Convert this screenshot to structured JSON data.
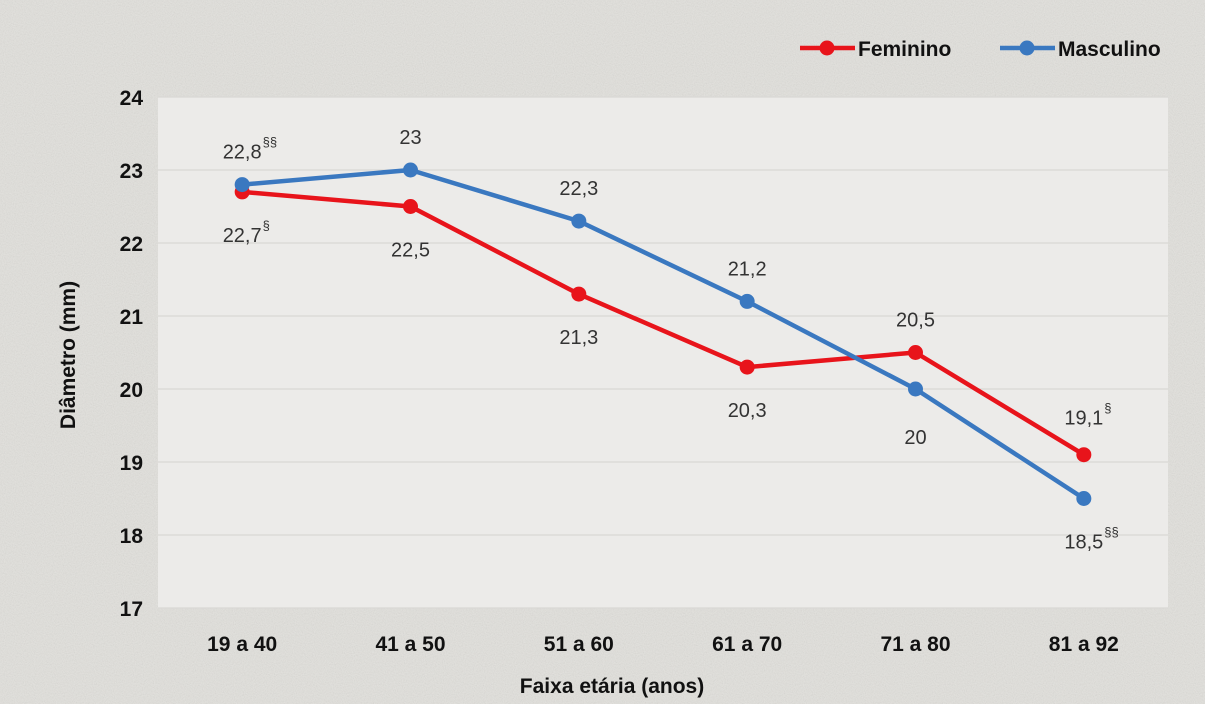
{
  "chart_data": {
    "type": "line",
    "title": "",
    "xlabel": "Faixa etária (anos)",
    "ylabel": "Diâmetro (mm)",
    "ylim": [
      17,
      24
    ],
    "yticks": [
      "17",
      "18",
      "19",
      "20",
      "21",
      "22",
      "23",
      "24"
    ],
    "categories": [
      "19 a 40",
      "41 a 50",
      "51 a 60",
      "61 a 70",
      "71 a 80",
      "81 a 92"
    ],
    "grid": "horizontal",
    "legend_position": "top-right",
    "series": [
      {
        "name": "Feminino",
        "color": "#e8141b",
        "values": [
          22.7,
          22.5,
          21.3,
          20.3,
          20.5,
          19.1
        ],
        "labels": [
          "22,7",
          "22,5",
          "21,3",
          "20,3",
          "20,5",
          "19,1"
        ],
        "markers": [
          "§",
          "",
          "",
          "",
          "",
          "§"
        ],
        "label_position": [
          "below",
          "below",
          "below",
          "below",
          "above",
          "above"
        ]
      },
      {
        "name": "Masculino",
        "color": "#3a78c0",
        "values": [
          22.8,
          23.0,
          22.3,
          21.2,
          20.0,
          18.5
        ],
        "labels": [
          "22,8",
          "23",
          "22,3",
          "21,2",
          "20",
          "18,5"
        ],
        "markers": [
          "§§",
          "",
          "",
          "",
          "",
          "§§"
        ],
        "label_position": [
          "above",
          "above",
          "above",
          "above",
          "below",
          "below"
        ]
      }
    ]
  }
}
